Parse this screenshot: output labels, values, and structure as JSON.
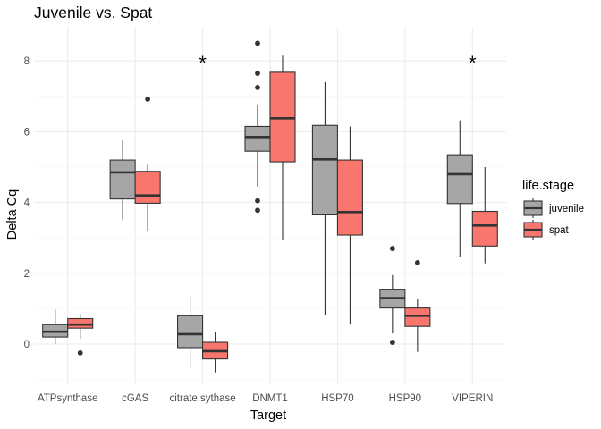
{
  "chart_data": {
    "type": "boxplot",
    "title": "Juvenile vs. Spat",
    "xlabel": "Target",
    "ylabel": "Delta Cq",
    "ylim": [
      -1.2,
      8.9
    ],
    "yticks": [
      0,
      2,
      4,
      6,
      8
    ],
    "grid": true,
    "legend": {
      "title": "life.stage",
      "placement": "right",
      "entries": [
        "juvenile",
        "spat"
      ]
    },
    "colors": {
      "juvenile": "#a6a6a6",
      "spat": "#f8766d",
      "outline": "#333333"
    },
    "categories": [
      "ATPsynthase",
      "cGAS",
      "citrate.sythase",
      "DNMT1",
      "HSP70",
      "HSP90",
      "VIPERIN"
    ],
    "significance": [
      {
        "category": "citrate.sythase",
        "label": "*"
      },
      {
        "category": "VIPERIN",
        "label": "*"
      }
    ],
    "series": [
      {
        "name": "juvenile",
        "boxes": [
          {
            "category": "ATPsynthase",
            "whisker_low": 0.0,
            "q1": 0.2,
            "median": 0.35,
            "q3": 0.55,
            "whisker_high": 0.98,
            "outliers": []
          },
          {
            "category": "cGAS",
            "whisker_low": 3.5,
            "q1": 4.1,
            "median": 4.85,
            "q3": 5.2,
            "whisker_high": 5.75,
            "outliers": []
          },
          {
            "category": "citrate.sythase",
            "whisker_low": -0.7,
            "q1": -0.1,
            "median": 0.28,
            "q3": 0.8,
            "whisker_high": 1.35,
            "outliers": []
          },
          {
            "category": "DNMT1",
            "whisker_low": 4.45,
            "q1": 5.45,
            "median": 5.85,
            "q3": 6.15,
            "whisker_high": 6.75,
            "outliers": [
              8.5,
              7.65,
              7.25,
              4.05,
              3.78
            ]
          },
          {
            "category": "HSP70",
            "whisker_low": 0.82,
            "q1": 3.65,
            "median": 5.22,
            "q3": 6.18,
            "whisker_high": 7.4,
            "outliers": []
          },
          {
            "category": "HSP90",
            "whisker_low": 0.3,
            "q1": 1.02,
            "median": 1.3,
            "q3": 1.55,
            "whisker_high": 1.95,
            "outliers": [
              2.7,
              0.05
            ]
          },
          {
            "category": "VIPERIN",
            "whisker_low": 2.45,
            "q1": 3.97,
            "median": 4.8,
            "q3": 5.35,
            "whisker_high": 6.32,
            "outliers": []
          }
        ]
      },
      {
        "name": "spat",
        "boxes": [
          {
            "category": "ATPsynthase",
            "whisker_low": 0.15,
            "q1": 0.45,
            "median": 0.55,
            "q3": 0.72,
            "whisker_high": 0.85,
            "outliers": [
              -0.25
            ]
          },
          {
            "category": "cGAS",
            "whisker_low": 3.2,
            "q1": 3.98,
            "median": 4.2,
            "q3": 4.88,
            "whisker_high": 5.1,
            "outliers": [
              6.92
            ]
          },
          {
            "category": "citrate.sythase",
            "whisker_low": -0.8,
            "q1": -0.42,
            "median": -0.2,
            "q3": 0.05,
            "whisker_high": 0.35,
            "outliers": []
          },
          {
            "category": "DNMT1",
            "whisker_low": 2.95,
            "q1": 5.15,
            "median": 6.38,
            "q3": 7.68,
            "whisker_high": 8.15,
            "outliers": []
          },
          {
            "category": "HSP70",
            "whisker_low": 0.55,
            "q1": 3.08,
            "median": 3.73,
            "q3": 5.2,
            "whisker_high": 6.15,
            "outliers": []
          },
          {
            "category": "HSP90",
            "whisker_low": -0.22,
            "q1": 0.5,
            "median": 0.8,
            "q3": 1.02,
            "whisker_high": 1.28,
            "outliers": [
              2.3
            ]
          },
          {
            "category": "VIPERIN",
            "whisker_low": 2.28,
            "q1": 2.77,
            "median": 3.35,
            "q3": 3.75,
            "whisker_high": 5.0,
            "outliers": []
          }
        ]
      }
    ]
  }
}
